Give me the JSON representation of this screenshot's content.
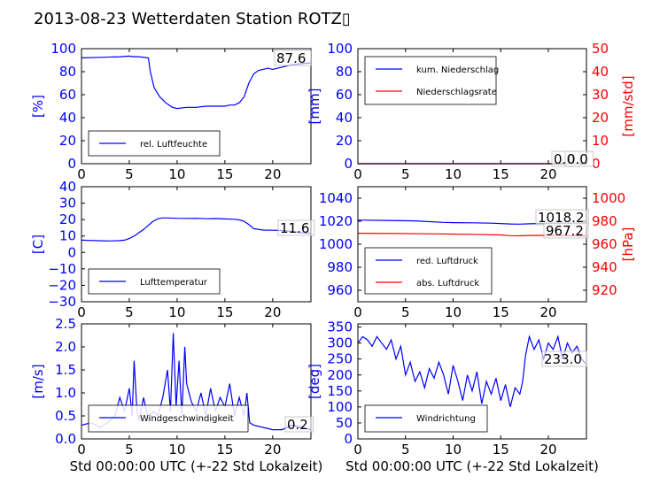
{
  "title": "2013-08-23 Wetterdaten Station ROTZ▯",
  "colors": {
    "blue": "#0000ff",
    "red": "#ff0000",
    "black": "#000000"
  },
  "chart_data": [
    {
      "type": "line",
      "name": "Luftfeuchte",
      "ylabel": "[%]",
      "xlim": [
        0,
        24
      ],
      "ylim": [
        0,
        100
      ],
      "x_ticks": [
        "0",
        "5",
        "10",
        "15",
        "20"
      ],
      "y_ticks": [
        "0",
        "20",
        "40",
        "60",
        "80",
        "100"
      ],
      "series": [
        {
          "name": "rel. Luftfeuchte",
          "color": "#0000ff",
          "x": [
            0,
            2,
            4,
            5,
            5.5,
            6,
            7,
            7.2,
            7.6,
            8.2,
            8.8,
            9.5,
            10,
            11,
            12,
            13,
            14,
            15,
            15.5,
            16,
            16.5,
            17,
            17.5,
            18,
            18.5,
            19,
            19.5,
            20,
            21,
            22,
            23,
            24
          ],
          "y": [
            92,
            92.5,
            93,
            93.5,
            93,
            93,
            92,
            80,
            66,
            58,
            53,
            49,
            48,
            49,
            49,
            50,
            50,
            50,
            51,
            51,
            53,
            58,
            70,
            78,
            81,
            82,
            83,
            82,
            84,
            86,
            87,
            87.6
          ]
        }
      ],
      "annotations": [
        "87.6"
      ]
    },
    {
      "type": "line",
      "name": "Niederschlag",
      "ylabel": "[mm]",
      "y2label": "[mm/std]",
      "xlim": [
        0,
        24
      ],
      "ylim": [
        0,
        100
      ],
      "y2lim": [
        0,
        50
      ],
      "x_ticks": [
        "0",
        "5",
        "10",
        "15",
        "20"
      ],
      "y_ticks": [
        "0",
        "20",
        "40",
        "60",
        "80",
        "100"
      ],
      "y2_ticks": [
        "0",
        "10",
        "20",
        "30",
        "40",
        "50"
      ],
      "series": [
        {
          "name": "kum. Niederschlag",
          "color": "#0000ff",
          "x": [
            0,
            24
          ],
          "y": [
            0,
            0
          ]
        },
        {
          "name": "Niederschlagsrate",
          "color": "#ff0000",
          "x": [
            0,
            24
          ],
          "y": [
            0,
            0
          ],
          "axis": "right"
        }
      ],
      "annotations": [
        "0.0",
        "0.0"
      ]
    },
    {
      "type": "line",
      "name": "Temperatur",
      "ylabel": "[C]",
      "xlim": [
        0,
        24
      ],
      "ylim": [
        -30,
        40
      ],
      "x_ticks": [
        "0",
        "5",
        "10",
        "15",
        "20"
      ],
      "y_ticks": [
        "−30",
        "−20",
        "−10",
        "0",
        "10",
        "20",
        "30",
        "40"
      ],
      "series": [
        {
          "name": "Lufttemperatur",
          "color": "#0000ff",
          "x": [
            0,
            1,
            2,
            3,
            4,
            4.5,
            5,
            5.5,
            6,
            6.5,
            7,
            7.5,
            8,
            8.5,
            9,
            10,
            11,
            12,
            13,
            14,
            15,
            16,
            16.5,
            17,
            17.5,
            18,
            19,
            20,
            21,
            22,
            23,
            24
          ],
          "y": [
            7.5,
            7.3,
            7.1,
            7,
            7.2,
            7.5,
            8.5,
            10,
            12,
            14,
            16.5,
            19,
            20.5,
            21,
            21,
            20.8,
            20.7,
            20.8,
            20.5,
            20.6,
            20.4,
            20.2,
            19.8,
            19,
            17,
            14.5,
            13.6,
            13.5,
            13.4,
            12.8,
            12,
            11.6
          ]
        }
      ],
      "annotations": [
        "11.6"
      ]
    },
    {
      "type": "line",
      "name": "Luftdruck",
      "ylabel": "",
      "y2label": "[hPa]",
      "xlim": [
        0,
        24
      ],
      "ylim": [
        950,
        1050
      ],
      "y2lim": [
        910,
        1010
      ],
      "x_ticks": [
        "0",
        "5",
        "10",
        "15",
        "20"
      ],
      "y_ticks": [
        "960",
        "980",
        "1000",
        "1020",
        "1040"
      ],
      "y2_ticks": [
        "920",
        "940",
        "960",
        "980",
        "1000"
      ],
      "series": [
        {
          "name": "red. Luftdruck",
          "color": "#0000ff",
          "x": [
            0,
            3,
            6,
            9,
            10,
            12,
            14,
            16,
            17,
            18,
            20,
            22,
            24
          ],
          "y": [
            1021,
            1020.7,
            1020.3,
            1019,
            1018.8,
            1018.6,
            1018.3,
            1017.6,
            1017.5,
            1017.8,
            1018.1,
            1018.2,
            1018.2
          ]
        },
        {
          "name": "abs. Luftdruck",
          "color": "#ff0000",
          "axis": "right",
          "x": [
            0,
            4,
            8,
            12,
            15,
            16,
            17,
            18,
            20,
            22,
            24
          ],
          "y": [
            969.5,
            969.3,
            969,
            968.6,
            968.1,
            967.5,
            967.3,
            967.6,
            967.8,
            967.5,
            967.2
          ]
        }
      ],
      "annotations": [
        "1018.2",
        "967.2"
      ]
    },
    {
      "type": "line",
      "name": "Windgeschwindigkeit",
      "ylabel": "[m/s]",
      "xlim": [
        0,
        24
      ],
      "ylim": [
        0,
        2.5
      ],
      "x_ticks": [
        "0",
        "5",
        "10",
        "15",
        "20"
      ],
      "y_ticks": [
        "0.0",
        "0.5",
        "1.0",
        "1.5",
        "2.0",
        "2.5"
      ],
      "xlabel": "Std 00:00:00 UTC (+-22 Std Lokalzeit)",
      "series": [
        {
          "name": "Windgeschwindigkeit",
          "color": "#0000ff",
          "x": [
            0,
            1,
            2,
            3,
            3.5,
            4,
            4.5,
            5,
            5.3,
            5.5,
            5.8,
            6,
            6.5,
            7,
            7.5,
            8,
            8.5,
            9,
            9.3,
            9.6,
            9.9,
            10.2,
            10.5,
            10.8,
            11,
            11.5,
            12,
            12.5,
            13,
            13.5,
            14,
            14.5,
            15,
            15.5,
            16,
            16.5,
            17,
            17.3,
            17.6,
            18,
            19,
            20,
            21,
            22,
            23,
            24
          ],
          "y": [
            0.3,
            0.35,
            0.25,
            0.4,
            0.5,
            0.9,
            0.6,
            1.1,
            0.5,
            1.7,
            0.6,
            0.4,
            0.9,
            0.4,
            0.6,
            0.5,
            0.9,
            1.5,
            0.6,
            2.3,
            0.7,
            1.7,
            0.5,
            2.0,
            1.2,
            0.8,
            0.6,
            1.0,
            0.5,
            1.1,
            0.6,
            0.9,
            0.7,
            1.2,
            0.5,
            0.9,
            0.5,
            1.0,
            0.35,
            0.3,
            0.25,
            0.2,
            0.2,
            0.3,
            0.25,
            0.2
          ]
        }
      ],
      "annotations": [
        "0.2"
      ]
    },
    {
      "type": "line",
      "name": "Windrichtung",
      "ylabel": "[deg]",
      "xlim": [
        0,
        24
      ],
      "ylim": [
        0,
        360
      ],
      "x_ticks": [
        "0",
        "5",
        "10",
        "15",
        "20"
      ],
      "y_ticks": [
        "0",
        "50",
        "100",
        "150",
        "200",
        "250",
        "300",
        "350"
      ],
      "xlabel": "Std 00:00:00 UTC (+-22 Std Lokalzeit)",
      "series": [
        {
          "name": "Windrichtung",
          "color": "#0000ff",
          "x": [
            0,
            0.5,
            1,
            1.5,
            2,
            2.5,
            3,
            3.5,
            4,
            4.5,
            5,
            5.5,
            6,
            6.5,
            7,
            7.5,
            8,
            8.5,
            9,
            9.5,
            10,
            10.5,
            11,
            11.5,
            12,
            12.5,
            13,
            13.5,
            14,
            14.5,
            15,
            15.5,
            16,
            16.5,
            17,
            17.3,
            17.6,
            18,
            18.5,
            19,
            19.5,
            20,
            20.5,
            21,
            21.5,
            22,
            22.5,
            23,
            23.5,
            24
          ],
          "y": [
            300,
            320,
            310,
            290,
            320,
            300,
            280,
            310,
            250,
            290,
            200,
            240,
            180,
            210,
            160,
            220,
            190,
            240,
            200,
            140,
            230,
            180,
            120,
            200,
            150,
            210,
            110,
            180,
            140,
            190,
            120,
            170,
            100,
            160,
            140,
            180,
            260,
            320,
            280,
            310,
            250,
            300,
            280,
            320,
            250,
            300,
            270,
            290,
            250,
            233
          ]
        }
      ],
      "annotations": [
        "233.0"
      ]
    }
  ]
}
